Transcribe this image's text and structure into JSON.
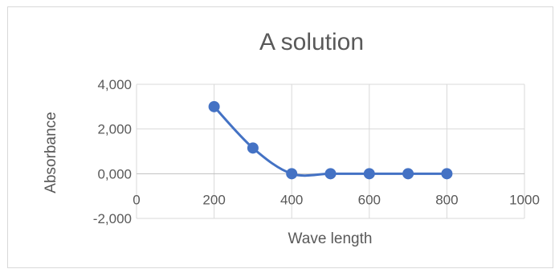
{
  "chart_data": {
    "type": "scatter",
    "title": "A solution",
    "xlabel": "Wave length",
    "ylabel": "Absorbance",
    "xlim": [
      0,
      1000
    ],
    "ylim": [
      -2,
      4
    ],
    "x_ticks": [
      0,
      200,
      400,
      600,
      800,
      1000
    ],
    "y_ticks": [
      -2,
      0,
      2,
      4
    ],
    "y_tick_labels": [
      "-2,000",
      "0,000",
      "2,000",
      "4,000"
    ],
    "x_tick_labels": [
      "0",
      "200",
      "400",
      "600",
      "800",
      "1000"
    ],
    "grid": true,
    "smooth_line": true,
    "series": [
      {
        "color": "#4472c4",
        "x": [
          200,
          300,
          400,
          500,
          600,
          700,
          800
        ],
        "y": [
          3.0,
          1.15,
          0.0,
          0.0,
          0.0,
          0.0,
          0.0
        ]
      }
    ]
  }
}
